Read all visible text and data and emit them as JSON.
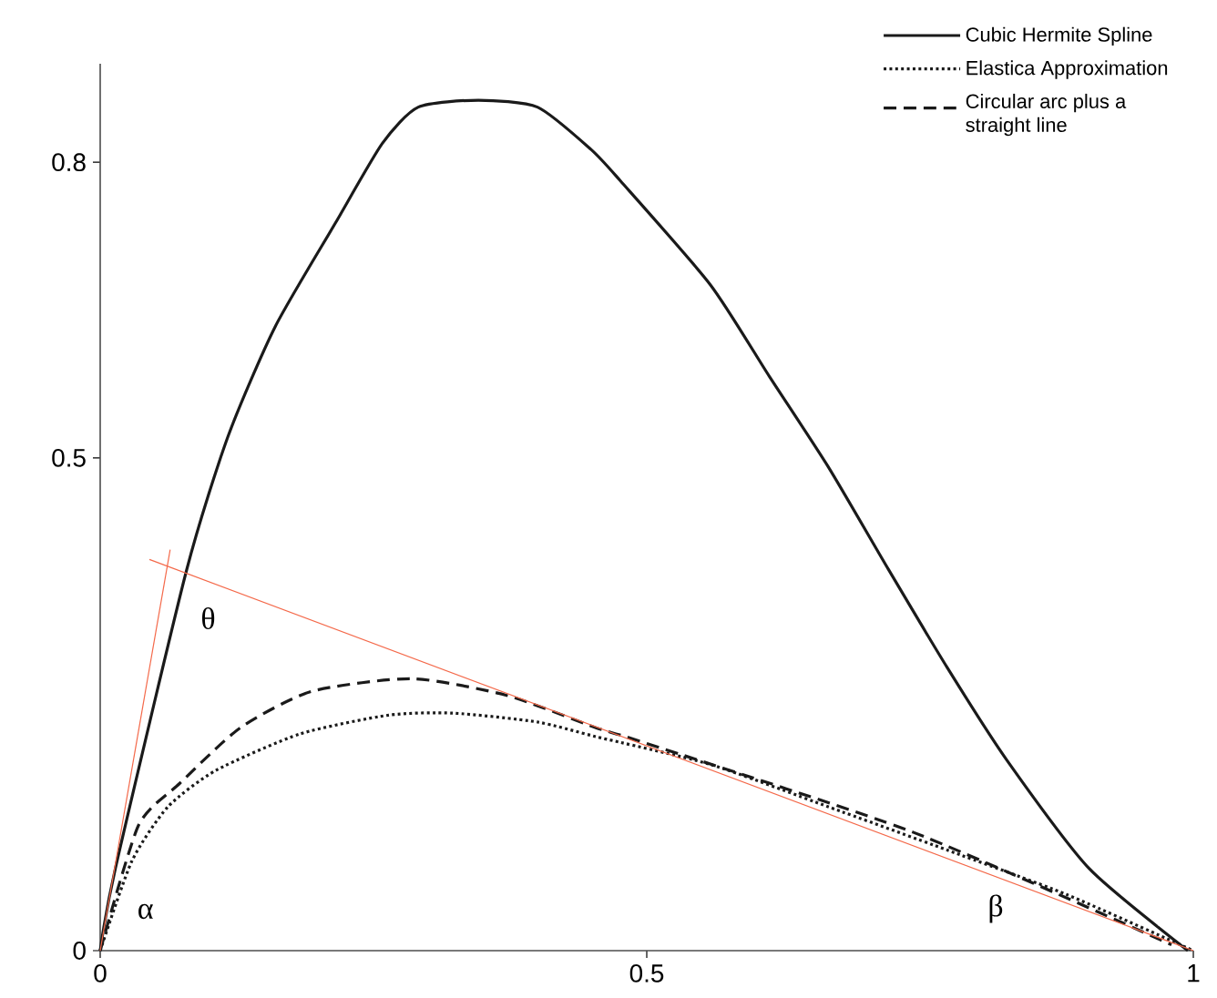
{
  "chart_data": {
    "type": "line",
    "xlim": [
      0,
      1
    ],
    "ylim": [
      0,
      0.9
    ],
    "xticks": [
      0,
      0.5,
      1
    ],
    "yticks": [
      0,
      0.5,
      0.8
    ],
    "legend": "top right",
    "grid": false,
    "series": [
      {
        "name": "Cubic Hermite Spline",
        "color": "#1a1a1a",
        "line_style": "solid",
        "x": [
          0,
          0.014,
          0.079,
          0.117,
          0.16,
          0.215,
          0.258,
          0.291,
          0.346,
          0.4,
          0.449,
          0.476,
          0.558,
          0.612,
          0.666,
          0.721,
          0.775,
          0.829,
          0.905,
          0.995
        ],
        "values": [
          0,
          0.084,
          0.386,
          0.522,
          0.633,
          0.738,
          0.819,
          0.856,
          0.863,
          0.856,
          0.813,
          0.781,
          0.676,
          0.583,
          0.491,
          0.387,
          0.287,
          0.194,
          0.083,
          0
        ]
      },
      {
        "name": "Elastica Approximation",
        "color": "#1a1a1a",
        "line_style": "dotted",
        "x": [
          0,
          0.029,
          0.062,
          0.106,
          0.183,
          0.264,
          0.323,
          0.4,
          0.454,
          0.558,
          0.666,
          0.775,
          0.884,
          1
        ],
        "values": [
          0,
          0.091,
          0.146,
          0.183,
          0.22,
          0.239,
          0.241,
          0.232,
          0.217,
          0.189,
          0.146,
          0.102,
          0.057,
          0
        ]
      },
      {
        "name": "Circular arc plus a straight line",
        "color": "#1a1a1a",
        "line_style": "dashed",
        "x": [
          0,
          0.035,
          0.073,
          0.128,
          0.193,
          0.285,
          0.372,
          0.454,
          0.498,
          0.744,
          0.98
        ],
        "values": [
          0,
          0.127,
          0.17,
          0.226,
          0.263,
          0.276,
          0.259,
          0.226,
          0.211,
          0.12,
          0.006
        ]
      },
      {
        "color": "#f4694a",
        "line_style": "solid",
        "x": [
          0,
          0.064
        ],
        "values": [
          0,
          0.407
        ]
      },
      {
        "color": "#f4694a",
        "line_style": "solid",
        "x": [
          0.045,
          1
        ],
        "values": [
          0.397,
          0
        ]
      }
    ],
    "annotations": [
      "θ",
      "α",
      "β"
    ]
  }
}
